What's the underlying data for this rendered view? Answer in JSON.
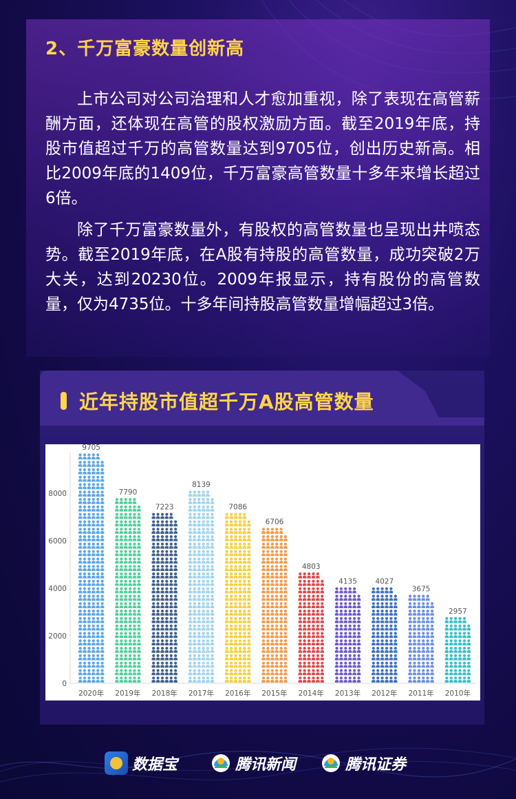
{
  "section": {
    "title": "2、千万富豪数量创新高",
    "paragraph1": "上市公司对公司治理和人才愈加重视，除了表现在高管薪酬方面，还体现在高管的股权激励方面。截至2019年底，持股市值超过千万的高管数量达到9705位，创出历史新高。相比2009年底的1409位，千万富豪高管数量十多年来增长超过6倍。",
    "paragraph2": "除了千万富豪数量外，有股权的高管数量也呈现出井喷态势。截至2019年底，在A股有持股的高管数量，成功突破2万大关，达到20230位。2009年报显示，持有股份的高管数量，仅为4735位。十多年间持股高管数量增幅超过3倍。"
  },
  "chart_data": {
    "type": "bar",
    "title": "近年持股市值超千万A股高管数量",
    "categories": [
      "2020年",
      "2019年",
      "2018年",
      "2017年",
      "2016年",
      "2015年",
      "2014年",
      "2013年",
      "2012年",
      "2011年",
      "2010年"
    ],
    "values": [
      9705,
      7790,
      7223,
      8139,
      7086,
      6706,
      4803,
      4135,
      4027,
      3675,
      2957
    ],
    "yticks": [
      "0",
      "2000",
      "4000",
      "6000",
      "8000"
    ],
    "ylim": [
      0,
      10000
    ],
    "colors": [
      "#5aa6e6",
      "#4fcf9a",
      "#3e5f8c",
      "#9fd4ee",
      "#f5cf3b",
      "#f29a4a",
      "#dc4a4a",
      "#6f58c9",
      "#3f6fc2",
      "#6d8fe0",
      "#35bfc8"
    ]
  },
  "footer": {
    "brands": [
      "数据宝",
      "腾讯新闻",
      "腾讯证券"
    ]
  }
}
